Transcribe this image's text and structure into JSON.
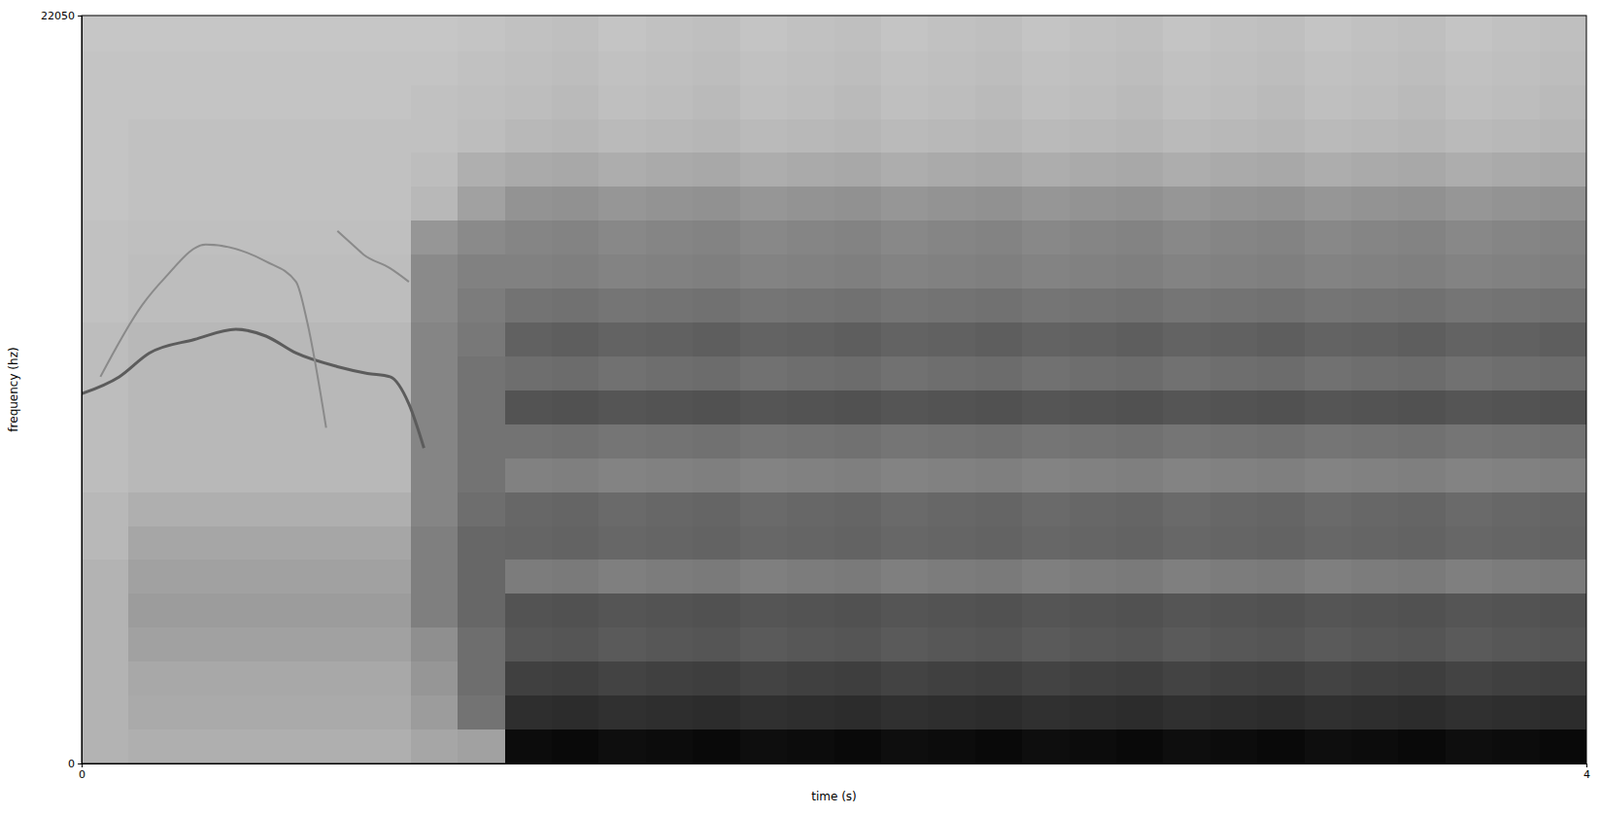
{
  "chart_data": {
    "type": "heatmap",
    "xlabel": "time (s)",
    "ylabel": "frequency (hz)",
    "xlim": [
      0,
      4
    ],
    "ylim": [
      0,
      22050
    ],
    "xticks": [
      0,
      4
    ],
    "yticks": [
      0,
      22050
    ],
    "zlim": [
      0,
      100
    ],
    "x_edges": [
      0,
      0.125,
      0.25,
      0.375,
      0.5,
      0.625,
      0.75,
      0.875,
      1,
      1.125,
      1.25,
      1.375,
      1.5,
      1.625,
      1.75,
      1.875,
      2,
      2.125,
      2.25,
      2.375,
      2.5,
      2.625,
      2.75,
      2.875,
      3,
      3.125,
      3.25,
      3.375,
      3.5,
      3.625,
      3.75,
      3.875,
      4
    ],
    "y_edges": [
      0,
      1000,
      2000,
      3000,
      4000,
      5000,
      6000,
      7000,
      8000,
      9000,
      10000,
      11000,
      12000,
      13000,
      14000,
      15000,
      16000,
      17000,
      18000,
      19000,
      20000,
      21000,
      22050
    ],
    "z": [
      [
        22,
        24,
        24,
        24,
        24,
        24,
        24,
        28,
        30,
        95,
        96,
        94,
        95,
        96,
        94,
        95,
        96,
        94,
        95,
        96,
        94,
        95,
        96,
        94,
        95,
        96,
        94,
        95,
        96,
        94,
        95,
        96
      ],
      [
        22,
        26,
        26,
        26,
        26,
        26,
        26,
        32,
        50,
        80,
        81,
        79,
        80,
        81,
        79,
        80,
        81,
        79,
        80,
        81,
        79,
        80,
        81,
        79,
        80,
        81,
        79,
        80,
        81,
        79,
        80,
        81
      ],
      [
        22,
        27,
        27,
        27,
        27,
        27,
        27,
        35,
        52,
        72,
        73,
        71,
        72,
        73,
        71,
        72,
        73,
        71,
        72,
        73,
        71,
        72,
        73,
        71,
        72,
        73,
        71,
        72,
        73,
        71,
        72,
        73
      ],
      [
        22,
        30,
        30,
        30,
        30,
        30,
        30,
        38,
        52,
        62,
        63,
        61,
        62,
        63,
        61,
        62,
        63,
        61,
        62,
        63,
        61,
        62,
        63,
        61,
        62,
        63,
        61,
        62,
        63,
        61,
        62,
        63
      ],
      [
        22,
        32,
        32,
        32,
        32,
        32,
        32,
        45,
        55,
        64,
        65,
        63,
        64,
        65,
        63,
        64,
        65,
        63,
        64,
        65,
        63,
        64,
        65,
        63,
        64,
        65,
        63,
        64,
        65,
        63,
        64,
        65
      ],
      [
        22,
        30,
        30,
        30,
        30,
        30,
        30,
        45,
        55,
        46,
        47,
        45,
        46,
        47,
        45,
        46,
        47,
        45,
        46,
        47,
        45,
        46,
        47,
        45,
        46,
        47,
        45,
        46,
        47,
        45,
        46,
        47
      ],
      [
        20,
        28,
        28,
        28,
        28,
        28,
        28,
        45,
        55,
        56,
        57,
        55,
        56,
        57,
        55,
        56,
        57,
        55,
        56,
        57,
        55,
        56,
        57,
        55,
        56,
        57,
        55,
        56,
        57,
        55,
        56,
        57
      ],
      [
        20,
        24,
        24,
        24,
        24,
        24,
        24,
        42,
        52,
        55,
        56,
        54,
        55,
        56,
        54,
        55,
        56,
        54,
        55,
        56,
        54,
        55,
        56,
        54,
        55,
        56,
        54,
        55,
        56,
        54,
        55,
        56
      ],
      [
        18,
        20,
        20,
        20,
        20,
        20,
        20,
        42,
        50,
        44,
        45,
        43,
        44,
        45,
        43,
        44,
        45,
        43,
        44,
        45,
        43,
        44,
        45,
        43,
        44,
        45,
        43,
        44,
        45,
        43,
        44,
        45
      ],
      [
        18,
        20,
        20,
        20,
        20,
        20,
        20,
        42,
        50,
        50,
        51,
        49,
        50,
        51,
        49,
        50,
        51,
        49,
        50,
        51,
        49,
        50,
        51,
        49,
        50,
        51,
        49,
        50,
        51,
        49,
        50,
        51
      ],
      [
        18,
        20,
        20,
        20,
        20,
        20,
        20,
        42,
        50,
        64,
        65,
        63,
        64,
        65,
        63,
        64,
        65,
        63,
        64,
        65,
        63,
        64,
        65,
        63,
        64,
        65,
        63,
        64,
        65,
        63,
        64,
        65
      ],
      [
        18,
        20,
        20,
        20,
        20,
        20,
        20,
        42,
        50,
        52,
        53,
        51,
        52,
        53,
        51,
        52,
        53,
        51,
        52,
        53,
        51,
        52,
        53,
        51,
        52,
        53,
        51,
        52,
        53,
        51,
        52,
        53
      ],
      [
        18,
        20,
        20,
        20,
        20,
        20,
        20,
        42,
        48,
        58,
        59,
        57,
        58,
        59,
        57,
        58,
        59,
        57,
        58,
        59,
        57,
        58,
        59,
        57,
        58,
        59,
        57,
        58,
        59,
        57,
        58,
        59
      ],
      [
        16,
        18,
        18,
        18,
        18,
        18,
        18,
        40,
        46,
        50,
        51,
        49,
        50,
        51,
        49,
        50,
        51,
        49,
        50,
        51,
        49,
        50,
        51,
        49,
        50,
        51,
        49,
        50,
        51,
        49,
        50,
        51
      ],
      [
        16,
        18,
        18,
        18,
        18,
        18,
        18,
        40,
        44,
        44,
        45,
        43,
        44,
        45,
        43,
        44,
        45,
        43,
        44,
        45,
        43,
        44,
        45,
        43,
        44,
        45,
        43,
        44,
        45,
        43,
        44,
        45
      ],
      [
        16,
        17,
        17,
        17,
        17,
        17,
        17,
        35,
        40,
        42,
        43,
        41,
        42,
        43,
        41,
        42,
        43,
        41,
        42,
        43,
        41,
        42,
        43,
        41,
        42,
        43,
        41,
        42,
        43,
        41,
        42,
        43
      ],
      [
        15,
        16,
        16,
        16,
        16,
        16,
        16,
        20,
        30,
        36,
        37,
        35,
        36,
        37,
        35,
        36,
        37,
        35,
        36,
        37,
        35,
        36,
        37,
        35,
        36,
        37,
        35,
        36,
        37,
        35,
        36,
        37
      ],
      [
        15,
        16,
        16,
        16,
        16,
        16,
        16,
        18,
        24,
        26,
        27,
        25,
        26,
        27,
        25,
        26,
        27,
        25,
        26,
        27,
        25,
        26,
        27,
        25,
        26,
        27,
        25,
        26,
        27,
        25,
        26,
        27
      ],
      [
        15,
        16,
        16,
        16,
        16,
        16,
        16,
        16,
        18,
        20,
        21,
        19,
        20,
        21,
        19,
        20,
        21,
        19,
        20,
        21,
        19,
        20,
        21,
        19,
        20,
        21,
        19,
        20,
        21,
        19,
        20,
        21
      ],
      [
        15,
        15,
        15,
        15,
        15,
        15,
        15,
        16,
        17,
        18,
        19,
        17,
        18,
        19,
        17,
        18,
        19,
        17,
        18,
        19,
        17,
        18,
        19,
        17,
        18,
        19,
        17,
        18,
        19,
        17,
        18,
        19
      ],
      [
        15,
        15,
        15,
        15,
        15,
        15,
        15,
        15,
        16,
        17,
        18,
        16,
        17,
        18,
        16,
        17,
        18,
        16,
        17,
        18,
        16,
        17,
        18,
        16,
        17,
        18,
        16,
        17,
        18,
        16,
        17,
        18
      ],
      [
        14,
        14,
        14,
        14,
        14,
        14,
        14,
        14,
        15,
        16,
        17,
        15,
        16,
        17,
        15,
        16,
        17,
        15,
        16,
        17,
        15,
        16,
        17,
        15,
        16,
        17,
        15,
        16,
        17,
        15,
        16,
        17
      ]
    ],
    "series": [
      {
        "type": "line",
        "color": "#5c5c5c",
        "x": [
          0,
          0.1,
          0.18,
          0.3,
          0.41,
          0.49,
          0.57,
          0.68,
          0.76,
          0.82,
          0.87,
          0.91
        ],
        "values": [
          10900,
          11400,
          12100,
          12500,
          12800,
          12600,
          12100,
          11700,
          11500,
          11400,
          10600,
          9300
        ]
      },
      {
        "type": "line",
        "color": "#8a8a8a",
        "x": [
          0.05,
          0.16,
          0.22,
          0.33,
          0.49,
          0.57,
          0.6,
          0.65
        ],
        "values": [
          11400,
          13500,
          14300,
          15300,
          14800,
          14200,
          13000,
          9900
        ]
      },
      {
        "type": "line",
        "color": "#8a8a8a",
        "x": [
          0.68,
          0.72,
          0.75,
          0.82,
          0.87
        ],
        "values": [
          15700,
          15300,
          15000,
          14600,
          14200
        ]
      }
    ]
  }
}
